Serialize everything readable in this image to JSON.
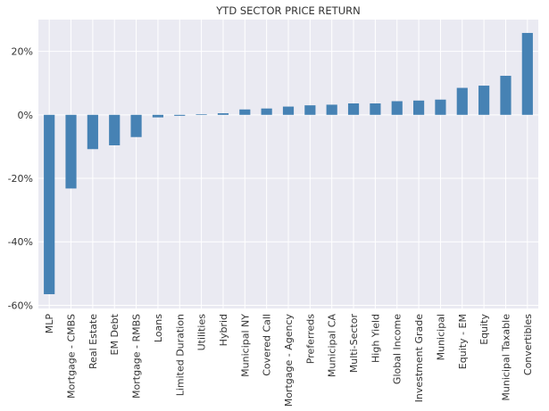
{
  "chart_data": {
    "type": "bar",
    "title": "YTD SECTOR PRICE RETURN",
    "xlabel": "",
    "ylabel": "",
    "ylim": [
      -61,
      30
    ],
    "yticks": [
      -60,
      -40,
      -20,
      0,
      20
    ],
    "ytick_labels": [
      "-60%",
      "-40%",
      "-20%",
      "0%",
      "20%"
    ],
    "grid": true,
    "legend": "none",
    "colors": {
      "bar": "#4682b4",
      "plot_background": "#eaeaf2",
      "grid": "#ffffff",
      "text": "#333333"
    },
    "categories": [
      "MLP",
      "Mortgage - CMBS",
      "Real Estate",
      "EM Debt",
      "Mortgage - RMBS",
      "Loans",
      "Limited Duration",
      "Utilities",
      "Hybrid",
      "Municipal NY",
      "Covered Call",
      "Mortgage - Agency",
      "Preferreds",
      "Municipal CA",
      "Multi-Sector",
      "High Yield",
      "Global Income",
      "Investment Grade",
      "Municipal",
      "Equity - EM",
      "Equity",
      "Municipal Taxable",
      "Convertibles"
    ],
    "values": [
      -56.5,
      -23.2,
      -10.8,
      -9.6,
      -7.0,
      -0.8,
      -0.3,
      0.2,
      0.5,
      1.7,
      2.0,
      2.6,
      3.0,
      3.2,
      3.6,
      3.6,
      4.3,
      4.5,
      4.8,
      8.5,
      9.2,
      12.3,
      25.8
    ]
  }
}
